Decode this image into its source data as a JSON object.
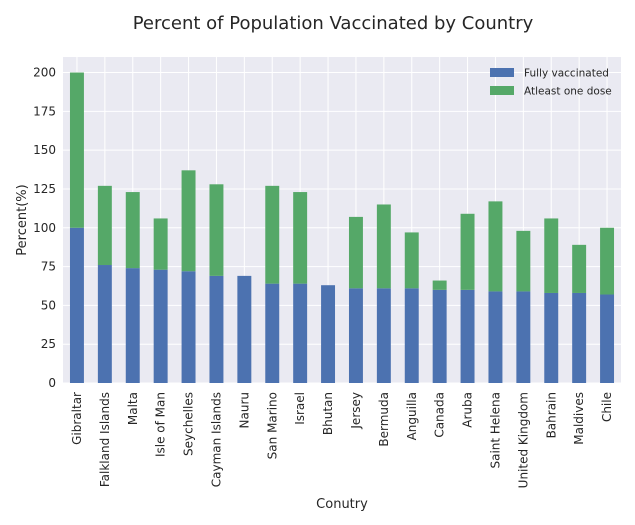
{
  "chart_data": {
    "type": "bar",
    "stacked": true,
    "title": "Percent of Population Vaccinated by Country",
    "xlabel": "Conutry",
    "ylabel": "Percent(%)",
    "ylim": [
      0,
      210
    ],
    "yticks": [
      0,
      25,
      50,
      75,
      100,
      125,
      150,
      175,
      200
    ],
    "grid": true,
    "legend_position": "top-right",
    "categories": [
      "Gibraltar",
      "Falkland Islands",
      "Malta",
      "Isle of Man",
      "Seychelles",
      "Cayman Islands",
      "Nauru",
      "San Marino",
      "Israel",
      "Bhutan",
      "Jersey",
      "Bermuda",
      "Anguilla",
      "Canada",
      "Aruba",
      "Saint Helena",
      "United Kingdom",
      "Bahrain",
      "Maldives",
      "Chile"
    ],
    "series": [
      {
        "name": "Fully vaccinated",
        "color": "#4c72b0",
        "values": [
          100,
          76,
          74,
          73,
          72,
          69,
          69,
          64,
          64,
          63,
          61,
          61,
          61,
          60,
          60,
          59,
          59,
          58,
          58,
          57
        ]
      },
      {
        "name": "Atleast one dose",
        "color": "#55a868",
        "values": [
          100,
          51,
          49,
          33,
          65,
          59,
          0,
          63,
          59,
          0,
          46,
          54,
          36,
          6,
          49,
          58,
          39,
          48,
          31,
          43
        ]
      }
    ],
    "colors": {
      "background": "#eaeaf2",
      "grid": "#ffffff",
      "text": "#262626"
    }
  }
}
